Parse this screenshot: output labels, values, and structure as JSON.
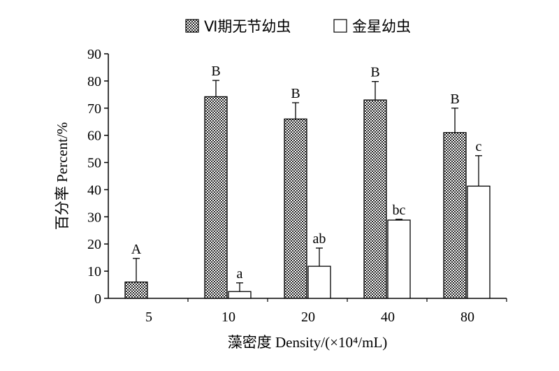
{
  "chart_data": {
    "type": "bar",
    "categories": [
      "5",
      "10",
      "20",
      "40",
      "80"
    ],
    "series": [
      {
        "name": "Ⅵ期无节幼虫",
        "pattern": "checkered",
        "values": [
          6,
          74.2,
          66,
          73,
          61
        ],
        "errors": [
          8.7,
          6,
          6,
          6.8,
          9
        ],
        "letters": [
          "A",
          "B",
          "B",
          "B",
          "B"
        ]
      },
      {
        "name": "金星幼虫",
        "pattern": "white",
        "values": [
          null,
          2.5,
          11.8,
          28.8,
          41.3
        ],
        "errors": [
          null,
          3.2,
          6.7,
          0.3,
          11.2
        ],
        "letters": [
          null,
          "a",
          "ab",
          "bc",
          "c"
        ]
      }
    ],
    "ylim": [
      0,
      90
    ],
    "yticks": [
      "0",
      "10",
      "20",
      "30",
      "40",
      "50",
      "60",
      "70",
      "80",
      "90"
    ],
    "ylabel": "百分率 Percent/%",
    "xlabel": "藻密度 Density/(×10⁴/mL)",
    "legend_position": "top",
    "grid": false
  }
}
